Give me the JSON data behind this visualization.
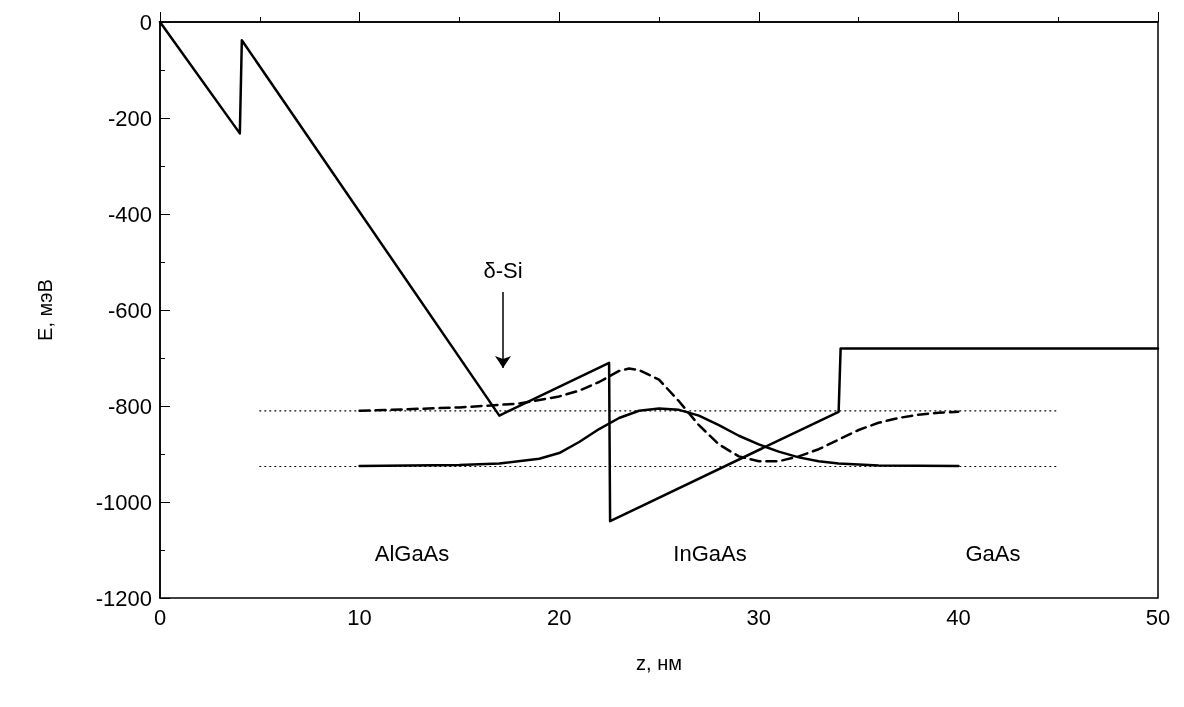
{
  "chart_data": {
    "type": "line",
    "xlabel": "z, нм",
    "ylabel": "E, мэВ",
    "xlim": [
      0,
      50
    ],
    "xticks": [
      0,
      10,
      20,
      30,
      40,
      50
    ],
    "ylim": [
      -1200,
      0
    ],
    "yticks": [
      -1200,
      -1000,
      -800,
      -600,
      -400,
      -200,
      0
    ],
    "grid": false,
    "marker": "none",
    "series": [
      {
        "color": "#000000",
        "line_style": "solid",
        "x": [
          0,
          4,
          4.1,
          17,
          22.5,
          22.55,
          34,
          34.1,
          50
        ],
        "values": [
          0,
          -232,
          -38,
          -820,
          -710,
          -1040,
          -812,
          -680,
          -680
        ]
      },
      {
        "color": "#000000",
        "line_style": "solid",
        "x": [
          10,
          15,
          17,
          19,
          20,
          21,
          22,
          23,
          24,
          25,
          26,
          27,
          28,
          29,
          30,
          31,
          32,
          33,
          34,
          36,
          40
        ],
        "values": [
          -925,
          -923,
          -920,
          -910,
          -898,
          -875,
          -848,
          -825,
          -810,
          -805,
          -808,
          -820,
          -840,
          -862,
          -880,
          -895,
          -907,
          -915,
          -920,
          -924,
          -925
        ]
      },
      {
        "color": "#000000",
        "line_style": "dashed",
        "x": [
          10,
          15,
          18,
          20,
          21,
          22,
          23,
          23.5,
          24,
          25,
          26,
          27,
          28,
          29,
          30,
          31,
          32,
          33,
          34,
          35,
          36,
          37,
          38,
          39,
          40
        ],
        "values": [
          -810,
          -803,
          -795,
          -780,
          -768,
          -750,
          -727,
          -722,
          -725,
          -745,
          -790,
          -840,
          -880,
          -905,
          -915,
          -915,
          -905,
          -890,
          -870,
          -850,
          -835,
          -825,
          -818,
          -814,
          -812
        ]
      },
      {
        "color": "#000000",
        "line_style": "dotted",
        "x": [
          5,
          45
        ],
        "values": [
          -810,
          -810
        ]
      },
      {
        "color": "#000000",
        "line_style": "dotted",
        "x": [
          5,
          45
        ],
        "values": [
          -926,
          -926
        ]
      }
    ],
    "annotations": [
      "δ-Si",
      "AlGaAs",
      "InGaAs",
      "GaAs"
    ]
  }
}
